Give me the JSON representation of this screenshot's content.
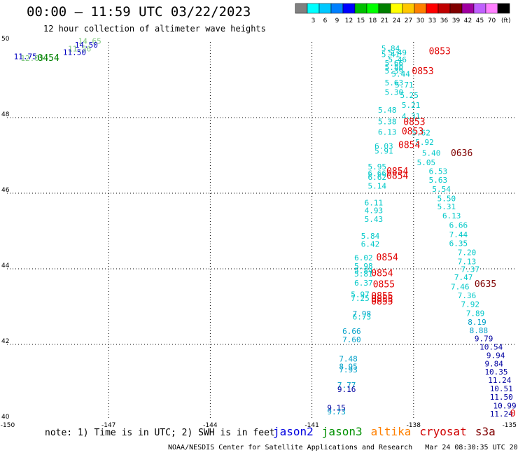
{
  "header": {
    "title": "00:00 – 11:59 UTC 03/22/2023",
    "subtitle": "12 hour collection of altimeter wave heights"
  },
  "colorbar": {
    "units": "(ft)",
    "bins": [
      {
        "label": "",
        "color": "#808080"
      },
      {
        "label": "3",
        "color": "#00ffff"
      },
      {
        "label": "6",
        "color": "#00c8ff"
      },
      {
        "label": "9",
        "color": "#0080ff"
      },
      {
        "label": "12",
        "color": "#0000ff"
      },
      {
        "label": "15",
        "color": "#00c000"
      },
      {
        "label": "18",
        "color": "#00ff00"
      },
      {
        "label": "21",
        "color": "#008000"
      },
      {
        "label": "24",
        "color": "#ffff00"
      },
      {
        "label": "27",
        "color": "#ffc800"
      },
      {
        "label": "30",
        "color": "#ff8000"
      },
      {
        "label": "33",
        "color": "#ff0000"
      },
      {
        "label": "36",
        "color": "#c00000"
      },
      {
        "label": "39",
        "color": "#800000"
      },
      {
        "label": "42",
        "color": "#a000a0"
      },
      {
        "label": "45",
        "color": "#c060ff"
      },
      {
        "label": "70",
        "color": "#ff80ff"
      },
      {
        "label": "",
        "color": "#000000"
      }
    ]
  },
  "note": "note: 1) Time is in UTC; 2) SWH is in feet",
  "satellites": [
    {
      "name": "jason2",
      "color": "#0000e0"
    },
    {
      "name": "jason3",
      "color": "#009000"
    },
    {
      "name": "altika",
      "color": "#ff8000"
    },
    {
      "name": "cryosat",
      "color": "#d00000"
    },
    {
      "name": "s3a",
      "color": "#800000"
    }
  ],
  "footer": "NOAA/NESDIS Center for Satellite Applications and Research   Mar 24 08:30:35 UTC 2023",
  "chart_data": {
    "type": "scatter",
    "xlim": [
      -150,
      -135
    ],
    "ylim": [
      40,
      50
    ],
    "x_ticks": [
      "-150",
      "-147",
      "-144",
      "-141",
      "-138",
      "-135"
    ],
    "y_ticks": [
      "40",
      "42",
      "44",
      "46",
      "48",
      "50"
    ],
    "grid": true,
    "points": [
      {
        "lon": -149.8,
        "lat": 49.55,
        "label": "11.75",
        "color": "#0000c0"
      },
      {
        "lon": -147.9,
        "lat": 49.95,
        "label": "14.65",
        "color": "#80c880"
      },
      {
        "lon": -148.0,
        "lat": 49.85,
        "label": "14.50",
        "color": "#0000c0"
      },
      {
        "lon": -148.2,
        "lat": 49.75,
        "label": "11.56",
        "color": "#80c880"
      },
      {
        "lon": -148.35,
        "lat": 49.66,
        "label": "11.50",
        "color": "#0000c0"
      },
      {
        "lon": -149.6,
        "lat": 49.5,
        "label": "12.05",
        "color": "#80c880"
      },
      {
        "lon": -149.1,
        "lat": 49.5,
        "label": "0454",
        "color": "#008000",
        "time": true
      },
      {
        "lon": -138.95,
        "lat": 49.76,
        "label": "5.84",
        "color": "#00c8c8"
      },
      {
        "lon": -138.75,
        "lat": 49.65,
        "label": "5.49",
        "color": "#00c8c8"
      },
      {
        "lon": -138.95,
        "lat": 49.6,
        "label": "5.41",
        "color": "#00c8c8"
      },
      {
        "lon": -138.75,
        "lat": 49.46,
        "label": "5.46",
        "color": "#00c8c8"
      },
      {
        "lon": -138.85,
        "lat": 49.37,
        "label": "5.66",
        "color": "#00c8c8"
      },
      {
        "lon": -138.85,
        "lat": 49.26,
        "label": "5.80",
        "color": "#00c8c8"
      },
      {
        "lon": -138.85,
        "lat": 49.17,
        "label": "5.39",
        "color": "#00c8c8"
      },
      {
        "lon": -138.65,
        "lat": 49.08,
        "label": "5.44",
        "color": "#00c8c8"
      },
      {
        "lon": -138.85,
        "lat": 48.85,
        "label": "5.63",
        "color": "#00c8c8"
      },
      {
        "lon": -138.55,
        "lat": 48.8,
        "label": "5.71",
        "color": "#00c8c8"
      },
      {
        "lon": -138.85,
        "lat": 48.6,
        "label": "5.30",
        "color": "#00c8c8"
      },
      {
        "lon": -138.4,
        "lat": 48.52,
        "label": "5.25",
        "color": "#00c8c8"
      },
      {
        "lon": -138.35,
        "lat": 48.26,
        "label": "5.21",
        "color": "#00c8c8"
      },
      {
        "lon": -139.05,
        "lat": 48.13,
        "label": "5.48",
        "color": "#00c8c8"
      },
      {
        "lon": -138.35,
        "lat": 47.96,
        "label": "4.31",
        "color": "#00c8c8"
      },
      {
        "lon": -139.05,
        "lat": 47.82,
        "label": "5.38",
        "color": "#00c8c8"
      },
      {
        "lon": -139.05,
        "lat": 47.55,
        "label": "6.13",
        "color": "#00c8c8"
      },
      {
        "lon": -138.05,
        "lat": 47.53,
        "label": "5.62",
        "color": "#00c8c8"
      },
      {
        "lon": -137.95,
        "lat": 47.28,
        "label": "5.92",
        "color": "#00c8c8"
      },
      {
        "lon": -139.15,
        "lat": 47.18,
        "label": "6.03",
        "color": "#00c8c8"
      },
      {
        "lon": -139.15,
        "lat": 47.05,
        "label": "5.91",
        "color": "#00c8c8"
      },
      {
        "lon": -137.75,
        "lat": 46.99,
        "label": "5.40",
        "color": "#00c8c8"
      },
      {
        "lon": -137.9,
        "lat": 46.74,
        "label": "5.05",
        "color": "#00c8c8"
      },
      {
        "lon": -139.35,
        "lat": 46.63,
        "label": "5.95",
        "color": "#00c8c8"
      },
      {
        "lon": -137.55,
        "lat": 46.51,
        "label": "6.53",
        "color": "#00c8c8"
      },
      {
        "lon": -139.35,
        "lat": 46.45,
        "label": "6.66",
        "color": "#00c8c8"
      },
      {
        "lon": -139.35,
        "lat": 46.35,
        "label": "6.62",
        "color": "#00c8c8"
      },
      {
        "lon": -137.55,
        "lat": 46.28,
        "label": "5.63",
        "color": "#00c8c8"
      },
      {
        "lon": -139.35,
        "lat": 46.12,
        "label": "5.14",
        "color": "#00c8c8"
      },
      {
        "lon": -137.45,
        "lat": 46.04,
        "label": "5.54",
        "color": "#00c8c8"
      },
      {
        "lon": -137.3,
        "lat": 45.79,
        "label": "5.50",
        "color": "#00c8c8"
      },
      {
        "lon": -139.45,
        "lat": 45.68,
        "label": "6.11",
        "color": "#00c8c8"
      },
      {
        "lon": -137.3,
        "lat": 45.57,
        "label": "5.31",
        "color": "#00c8c8"
      },
      {
        "lon": -139.45,
        "lat": 45.47,
        "label": "4.93",
        "color": "#00c8c8"
      },
      {
        "lon": -137.15,
        "lat": 45.33,
        "label": "6.13",
        "color": "#00c8c8"
      },
      {
        "lon": -139.45,
        "lat": 45.24,
        "label": "5.43",
        "color": "#00c8c8"
      },
      {
        "lon": -136.95,
        "lat": 45.08,
        "label": "6.66",
        "color": "#00c8c8"
      },
      {
        "lon": -136.95,
        "lat": 44.83,
        "label": "7.44",
        "color": "#00c8c8"
      },
      {
        "lon": -139.55,
        "lat": 44.8,
        "label": "5.84",
        "color": "#00c8c8"
      },
      {
        "lon": -139.55,
        "lat": 44.58,
        "label": "6.42",
        "color": "#00c8c8"
      },
      {
        "lon": -136.95,
        "lat": 44.6,
        "label": "6.35",
        "color": "#00c8c8"
      },
      {
        "lon": -136.7,
        "lat": 44.36,
        "label": "7.20",
        "color": "#00c8c8"
      },
      {
        "lon": -139.75,
        "lat": 44.22,
        "label": "6.02",
        "color": "#00c8c8"
      },
      {
        "lon": -136.7,
        "lat": 44.12,
        "label": "7.13",
        "color": "#00c8c8"
      },
      {
        "lon": -139.75,
        "lat": 44.0,
        "label": "5.98",
        "color": "#00c8c8"
      },
      {
        "lon": -136.6,
        "lat": 43.92,
        "label": "7.37",
        "color": "#00c8c8"
      },
      {
        "lon": -139.75,
        "lat": 43.88,
        "label": "5.84",
        "color": "#00c8c8"
      },
      {
        "lon": -139.75,
        "lat": 43.8,
        "label": "5.81",
        "color": "#00c8c8"
      },
      {
        "lon": -136.8,
        "lat": 43.7,
        "label": "7.47",
        "color": "#00c8c8"
      },
      {
        "lon": -139.75,
        "lat": 43.56,
        "label": "6.37",
        "color": "#00c8c8"
      },
      {
        "lon": -136.9,
        "lat": 43.45,
        "label": "7.46",
        "color": "#00c8c8"
      },
      {
        "lon": -139.85,
        "lat": 43.25,
        "label": "5.97",
        "color": "#00c8c8"
      },
      {
        "lon": -136.7,
        "lat": 43.22,
        "label": "7.36",
        "color": "#00c8c8"
      },
      {
        "lon": -139.85,
        "lat": 43.15,
        "label": "7.25",
        "color": "#00c8c8"
      },
      {
        "lon": -136.6,
        "lat": 42.99,
        "label": "7.92",
        "color": "#00c8c8"
      },
      {
        "lon": -136.45,
        "lat": 42.75,
        "label": "7.89",
        "color": "#00c8c8"
      },
      {
        "lon": -139.8,
        "lat": 42.74,
        "label": "7.98",
        "color": "#00a0c8"
      },
      {
        "lon": -139.8,
        "lat": 42.66,
        "label": "6.73",
        "color": "#00c8c8"
      },
      {
        "lon": -136.4,
        "lat": 42.52,
        "label": "8.19",
        "color": "#00a0c8"
      },
      {
        "lon": -136.35,
        "lat": 42.3,
        "label": "8.88",
        "color": "#00a0c8"
      },
      {
        "lon": -140.1,
        "lat": 42.28,
        "label": "6.66",
        "color": "#00a0c8"
      },
      {
        "lon": -136.2,
        "lat": 42.08,
        "label": "9.79",
        "color": "#0000a0"
      },
      {
        "lon": -140.1,
        "lat": 42.06,
        "label": "7.60",
        "color": "#00a0c8"
      },
      {
        "lon": -136.05,
        "lat": 41.86,
        "label": "10.54",
        "color": "#0000a0"
      },
      {
        "lon": -135.85,
        "lat": 41.64,
        "label": "9.94",
        "color": "#0000a0"
      },
      {
        "lon": -140.2,
        "lat": 41.55,
        "label": "7.48",
        "color": "#00a0c8"
      },
      {
        "lon": -135.9,
        "lat": 41.42,
        "label": "9.84",
        "color": "#0000a0"
      },
      {
        "lon": -140.2,
        "lat": 41.34,
        "label": "8.95",
        "color": "#00a0c8"
      },
      {
        "lon": -140.2,
        "lat": 41.26,
        "label": "7.93",
        "color": "#00a0c8"
      },
      {
        "lon": -135.9,
        "lat": 41.2,
        "label": "10.35",
        "color": "#0000a0"
      },
      {
        "lon": -135.8,
        "lat": 40.98,
        "label": "11.24",
        "color": "#0000a0"
      },
      {
        "lon": -140.25,
        "lat": 40.85,
        "label": "7.77",
        "color": "#00a0c8"
      },
      {
        "lon": -135.75,
        "lat": 40.76,
        "label": "10.51",
        "color": "#0000a0"
      },
      {
        "lon": -140.25,
        "lat": 40.74,
        "label": "9.16",
        "color": "#0000a0"
      },
      {
        "lon": -135.75,
        "lat": 40.54,
        "label": "11.50",
        "color": "#0000a0"
      },
      {
        "lon": -135.65,
        "lat": 40.31,
        "label": "10.99",
        "color": "#0000a0"
      },
      {
        "lon": -140.55,
        "lat": 40.25,
        "label": "9.15",
        "color": "#0000a0"
      },
      {
        "lon": -140.55,
        "lat": 40.15,
        "label": "9.73",
        "color": "#00a0c8"
      },
      {
        "lon": -135.75,
        "lat": 40.09,
        "label": "11.24",
        "color": "#0000a0"
      },
      {
        "lon": -137.55,
        "lat": 49.68,
        "label": "0853",
        "color": "#e00000",
        "time": true
      },
      {
        "lon": -138.05,
        "lat": 49.15,
        "label": "0853",
        "color": "#e00000",
        "time": true
      },
      {
        "lon": -138.3,
        "lat": 47.81,
        "label": "0853",
        "color": "#e00000",
        "time": true
      },
      {
        "lon": -138.35,
        "lat": 47.56,
        "label": "0853",
        "color": "#e00000",
        "time": true
      },
      {
        "lon": -138.45,
        "lat": 47.19,
        "label": "0854",
        "color": "#e00000",
        "time": true
      },
      {
        "lon": -136.9,
        "lat": 46.98,
        "label": "0636",
        "color": "#800000",
        "time": true
      },
      {
        "lon": -138.8,
        "lat": 46.5,
        "label": "0854",
        "color": "#e00000",
        "time": true
      },
      {
        "lon": -138.8,
        "lat": 46.38,
        "label": "0854",
        "color": "#e00000",
        "time": true
      },
      {
        "lon": -139.1,
        "lat": 44.22,
        "label": "0854",
        "color": "#e00000",
        "time": true
      },
      {
        "lon": -139.25,
        "lat": 43.81,
        "label": "0854",
        "color": "#e00000",
        "time": true
      },
      {
        "lon": -139.2,
        "lat": 43.51,
        "label": "0855",
        "color": "#e00000",
        "time": true
      },
      {
        "lon": -139.25,
        "lat": 43.2,
        "label": "0855",
        "color": "#e00000",
        "time": true
      },
      {
        "lon": -139.25,
        "lat": 43.12,
        "label": "0855",
        "color": "#e00000",
        "time": true
      },
      {
        "lon": -139.25,
        "lat": 43.06,
        "label": "0855",
        "color": "#e00000",
        "time": true
      },
      {
        "lon": -136.2,
        "lat": 43.52,
        "label": "0635",
        "color": "#800000",
        "time": true
      },
      {
        "lon": -135.15,
        "lat": 40.09,
        "label": "0",
        "color": "#e00000",
        "time": true
      }
    ]
  }
}
